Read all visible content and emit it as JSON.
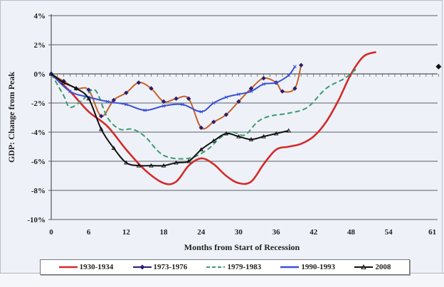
{
  "chart_data": {
    "type": "line",
    "title": "",
    "xlabel": "Months from Start of Recession",
    "ylabel": "GDP: Change from Peak",
    "x_ticks": [
      "0",
      "6",
      "12",
      "18",
      "24",
      "30",
      "36",
      "42",
      "48",
      "54",
      "61"
    ],
    "y_ticks": [
      "4%",
      "2%",
      "0%",
      "-2%",
      "-4%",
      "-6%",
      "-8%",
      "-10%"
    ],
    "xlim": [
      0,
      62
    ],
    "ylim": [
      -10,
      4
    ],
    "grid": true,
    "legend_position": "bottom",
    "series": [
      {
        "name": "1930-1934",
        "color": "#d42a2a",
        "style": "solid",
        "marker": "none",
        "x": [
          0,
          3,
          6,
          9,
          12,
          15,
          18,
          20,
          22,
          24,
          26,
          28,
          30,
          32,
          34,
          36,
          38,
          40,
          42,
          44,
          46,
          48,
          50,
          52
        ],
        "values": [
          0,
          -1.2,
          -2.6,
          -3.6,
          -5.2,
          -6.6,
          -7.5,
          -7.4,
          -6.3,
          -5.8,
          -6.2,
          -7.0,
          -7.5,
          -7.4,
          -6.2,
          -5.2,
          -5.0,
          -4.8,
          -4.3,
          -3.3,
          -1.8,
          0,
          1.2,
          1.5
        ]
      },
      {
        "name": "1973-1976",
        "color": "#2b1d6e",
        "line_color": "#c8612a",
        "style": "solid",
        "marker": "diamond",
        "x": [
          0,
          2,
          4,
          6,
          8,
          10,
          12,
          14,
          16,
          18,
          20,
          22,
          24,
          26,
          28,
          30,
          32,
          34,
          36,
          37,
          39,
          40
        ],
        "values": [
          0,
          -0.5,
          -1.0,
          -1.1,
          -2.9,
          -1.8,
          -1.3,
          -0.6,
          -1.0,
          -1.9,
          -1.7,
          -1.7,
          -3.7,
          -3.3,
          -2.8,
          -1.9,
          -1.0,
          -0.3,
          -0.6,
          -1.2,
          -1.0,
          0.6
        ]
      },
      {
        "name": "1979-1983",
        "color": "#3e9a6e",
        "style": "dashed",
        "marker": "none",
        "x": [
          0,
          2,
          3,
          5,
          7,
          9,
          11,
          13,
          15,
          18,
          22,
          25,
          27,
          29,
          31,
          33,
          35,
          38,
          41,
          44,
          47,
          49
        ],
        "values": [
          0,
          -1.5,
          -2.3,
          -1.8,
          -1.1,
          -3.0,
          -3.8,
          -3.8,
          -4.3,
          -5.6,
          -5.8,
          -5.2,
          -4.4,
          -4.0,
          -4.2,
          -3.3,
          -2.9,
          -2.7,
          -2.3,
          -1.0,
          -0.3,
          0.4
        ]
      },
      {
        "name": "1990-1993",
        "color": "#3a4fd8",
        "style": "solid",
        "marker": "x",
        "x": [
          0,
          3,
          6,
          9,
          12,
          15,
          18,
          21,
          24,
          26,
          28,
          30,
          32,
          34,
          36,
          38,
          39
        ],
        "values": [
          0,
          -1.2,
          -1.6,
          -1.9,
          -2.1,
          -2.5,
          -2.2,
          -2.1,
          -2.6,
          -2.0,
          -1.6,
          -1.4,
          -1.2,
          -0.7,
          -0.6,
          -0.1,
          0.5
        ]
      },
      {
        "name": "2008",
        "color": "#111111",
        "style": "solid",
        "marker": "triangle",
        "x": [
          0,
          2,
          4,
          6,
          8,
          10,
          12,
          14,
          16,
          18,
          20,
          22,
          24,
          26,
          28,
          30,
          32,
          34,
          36,
          38
        ],
        "values": [
          0,
          -0.6,
          -1.0,
          -1.7,
          -3.8,
          -5.1,
          -6.1,
          -6.3,
          -6.3,
          -6.3,
          -6.1,
          -6.0,
          -5.2,
          -4.6,
          -4.1,
          -4.3,
          -4.5,
          -4.3,
          -4.1,
          -3.9
        ]
      }
    ],
    "annotations": [
      {
        "type": "point",
        "marker": "diamond",
        "x": 62,
        "y": 0.5,
        "color": "#111111"
      }
    ]
  },
  "legend": {
    "items": [
      {
        "label": "1930-1934"
      },
      {
        "label": "1973-1976"
      },
      {
        "label": "1979-1983"
      },
      {
        "label": "1990-1993"
      },
      {
        "label": "2008"
      }
    ]
  }
}
